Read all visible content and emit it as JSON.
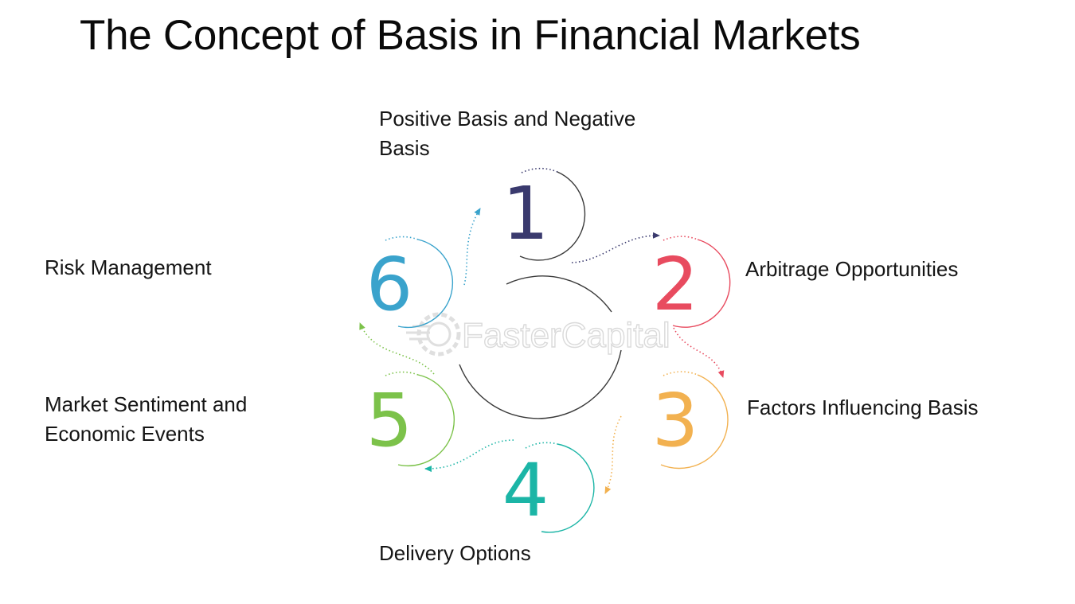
{
  "title": "The Concept of Basis in Financial Markets",
  "steps": [
    {
      "number": "1",
      "label_lines": [
        "Positive Basis and Negative",
        "Basis"
      ],
      "color": "#3a3a6e"
    },
    {
      "number": "2",
      "label_lines": [
        "Arbitrage Opportunities"
      ],
      "color": "#e84b5f"
    },
    {
      "number": "3",
      "label_lines": [
        "Factors Influencing Basis"
      ],
      "color": "#f2b150"
    },
    {
      "number": "4",
      "label_lines": [
        "Delivery Options"
      ],
      "color": "#1bb5a6"
    },
    {
      "number": "5",
      "label_lines": [
        "Market Sentiment and",
        "Economic Events"
      ],
      "color": "#7cc24a"
    },
    {
      "number": "6",
      "label_lines": [
        "Risk Management"
      ],
      "color": "#3aa3cc"
    }
  ],
  "watermark": "FasterCapital"
}
